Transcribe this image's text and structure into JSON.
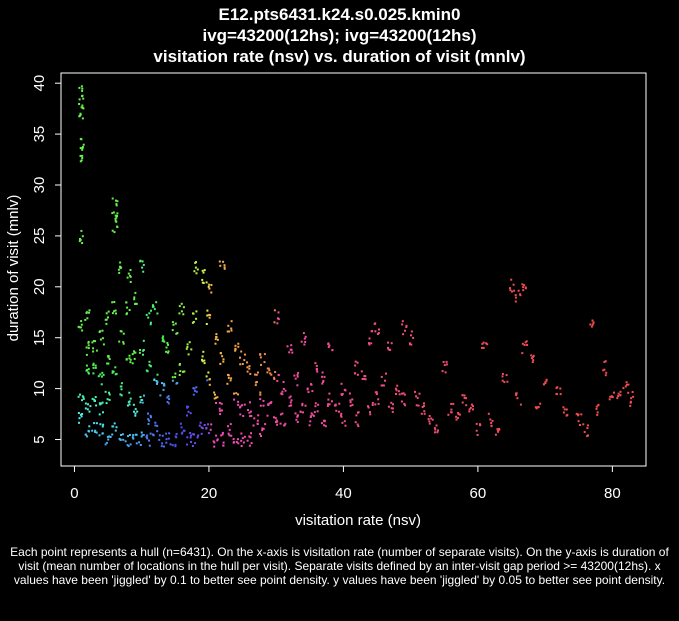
{
  "title_lines": [
    "E12.pts6431.k24.s0.025.kmin0",
    "ivg=43200(12hs); ivg=43200(12hs)",
    "visitation rate (nsv) vs. duration of visit (mnlv)"
  ],
  "caption": "Each point represents a hull (n=6431). On the x-axis is visitation rate (number of separate visits). On the y-axis is duration of visit (mean number of locations in the hull per visit). Separate visits defined by an inter-visit gap period >= 43200(12hs). x values have been 'jiggled' by 0.1 to better see point density. y values have been 'jiggled' by 0.05 to better see point density.",
  "chart_data": {
    "type": "scatter",
    "xlabel": "visitation rate (nsv)",
    "ylabel": "duration of visit (mnlv)",
    "xlim": [
      -2,
      85
    ],
    "ylim": [
      2.4,
      41
    ],
    "x_ticks": [
      0,
      20,
      40,
      60,
      80
    ],
    "x_tick_labels": [
      "0",
      "20",
      "40",
      "60",
      "80"
    ],
    "y_ticks": [
      5,
      10,
      15,
      20,
      25,
      30,
      35,
      40
    ],
    "y_tick_labels": [
      "5",
      "10",
      "15",
      "20",
      "25",
      "30",
      "35",
      "40"
    ],
    "grid": false,
    "legend": "none",
    "background": "#000000",
    "foreground": "#ffffff",
    "n_points": 6431,
    "color_mapping": "rainbow palette keyed to position (green/cyan at low x & high y, blue/purple at low y, magenta/orange/red toward high x)",
    "points_shown": {
      "x": [
        1,
        1,
        1,
        1,
        1,
        1,
        1,
        1,
        1,
        2,
        2,
        2,
        2,
        2,
        3,
        3,
        3,
        3,
        4,
        4,
        4,
        4,
        5,
        5,
        5,
        5,
        6,
        6,
        6,
        6,
        6,
        6,
        7,
        7,
        7,
        7,
        8,
        8,
        8,
        8,
        8,
        9,
        9,
        9,
        9,
        10,
        10,
        10,
        10,
        11,
        11,
        11,
        11,
        12,
        12,
        12,
        13,
        13,
        13,
        14,
        14,
        14,
        15,
        15,
        15,
        16,
        16,
        16,
        17,
        17,
        17,
        18,
        18,
        18,
        18,
        19,
        19,
        19,
        20,
        20,
        20,
        20,
        21,
        21,
        21,
        22,
        22,
        22,
        22,
        23,
        23,
        23,
        24,
        24,
        24,
        25,
        25,
        25,
        26,
        26,
        26,
        27,
        27,
        28,
        28,
        28,
        29,
        29,
        30,
        30,
        30,
        31,
        31,
        32,
        32,
        33,
        33,
        34,
        34,
        35,
        35,
        36,
        36,
        37,
        37,
        38,
        38,
        39,
        40,
        40,
        41,
        42,
        42,
        43,
        44,
        44,
        45,
        45,
        46,
        47,
        47,
        48,
        49,
        49,
        50,
        51,
        52,
        53,
        54,
        55,
        56,
        57,
        58,
        59,
        60,
        61,
        62,
        63,
        64,
        65,
        66,
        66,
        67,
        67,
        68,
        69,
        70,
        72,
        73,
        75,
        76,
        77,
        78,
        79,
        80,
        81,
        82,
        83
      ],
      "y": [
        39,
        38,
        37,
        34,
        33,
        25,
        16,
        9,
        7,
        17,
        14,
        12,
        8,
        6,
        14,
        12,
        9,
        6,
        15,
        11,
        8,
        6,
        17,
        13,
        9,
        5,
        28,
        27,
        26,
        18,
        12,
        6,
        22,
        15,
        10,
        5,
        21,
        18,
        13,
        9,
        5,
        19,
        13,
        8,
        5,
        22,
        14,
        9,
        5,
        17,
        12,
        7,
        5,
        18,
        11,
        6,
        15,
        10,
        5,
        14,
        9,
        5,
        16,
        11,
        5,
        18,
        12,
        6,
        14,
        8,
        5,
        22,
        17,
        10,
        5,
        21,
        13,
        6,
        20,
        17,
        11,
        6,
        15,
        9,
        5,
        22,
        13,
        8,
        5,
        16,
        11,
        6,
        14,
        9,
        5,
        13,
        8,
        5,
        12,
        8,
        5,
        11,
        7,
        13,
        9,
        6,
        12,
        8,
        17,
        11,
        7,
        10,
        7,
        14,
        9,
        11,
        7,
        15,
        8,
        10,
        7,
        12,
        8,
        11,
        7,
        14,
        9,
        8,
        10,
        7,
        9,
        12,
        7,
        11,
        15,
        8,
        16,
        9,
        11,
        14,
        8,
        10,
        16,
        9,
        15,
        9,
        8,
        7,
        6,
        12,
        8,
        7,
        9,
        8,
        6,
        14,
        7,
        6,
        11,
        20,
        19,
        9,
        20,
        14,
        13,
        8,
        11,
        10,
        8,
        7,
        6,
        16,
        8,
        12,
        9,
        9,
        10,
        9
      ]
    }
  }
}
